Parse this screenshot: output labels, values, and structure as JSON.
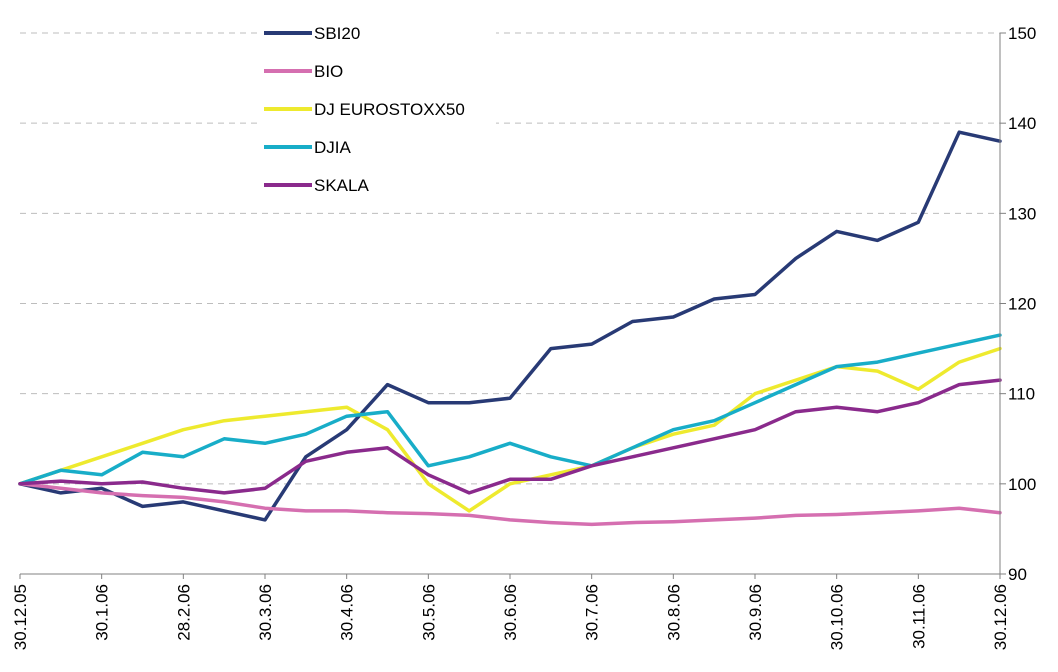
{
  "chart_data": {
    "type": "line",
    "categories": [
      "30.12.05",
      null,
      "30.1.06",
      null,
      "28.2.06",
      null,
      "30.3.06",
      null,
      "30.4.06",
      null,
      "30.5.06",
      null,
      "30.6.06",
      null,
      "30.7.06",
      null,
      "30.8.06",
      null,
      "30.9.06",
      null,
      "30.10.06",
      null,
      "30.11.06",
      null,
      "30.12.06"
    ],
    "series": [
      {
        "name": "SBI20",
        "color": "#283a75",
        "values": [
          100,
          99,
          99.5,
          97.5,
          98,
          97,
          96,
          103,
          106,
          111,
          109,
          109,
          109.5,
          115,
          115.5,
          118,
          118.5,
          120.5,
          121,
          125,
          128,
          127,
          129,
          139,
          138
        ]
      },
      {
        "name": "BIO",
        "color": "#d56fb0",
        "values": [
          100,
          99.5,
          99,
          98.7,
          98.5,
          98,
          97.3,
          97,
          97,
          96.8,
          96.7,
          96.5,
          96,
          95.7,
          95.5,
          95.7,
          95.8,
          96,
          96.2,
          96.5,
          96.6,
          96.8,
          97,
          97.3,
          96.8
        ]
      },
      {
        "name": "DJ EUROSTOXX50",
        "color": "#eeea2e",
        "values": [
          100,
          101.5,
          103,
          104.5,
          106,
          107,
          107.5,
          108,
          108.5,
          106,
          100,
          97,
          100,
          101,
          102,
          104,
          105.5,
          106.5,
          110,
          111.5,
          113,
          112.5,
          110.5,
          113.5,
          115
        ]
      },
      {
        "name": "DJIA",
        "color": "#18adc8",
        "values": [
          100,
          101.5,
          101,
          103.5,
          103,
          105,
          104.5,
          105.5,
          107.5,
          108,
          102,
          103,
          104.5,
          103,
          102,
          104,
          106,
          107,
          109,
          111,
          113,
          113.5,
          114.5,
          115.5,
          116.5
        ]
      },
      {
        "name": "SKALA",
        "color": "#8a2a8c",
        "values": [
          100,
          100.3,
          100,
          100.2,
          99.5,
          99,
          99.5,
          102.5,
          103.5,
          104,
          101,
          99,
          100.5,
          100.5,
          102,
          103,
          104,
          105,
          106,
          108,
          108.5,
          108,
          109,
          111,
          111.5
        ]
      }
    ],
    "ylim": [
      90,
      150
    ],
    "yticks": [
      90,
      100,
      110,
      120,
      130,
      140,
      150
    ],
    "y_axis_side": "right",
    "grid": true
  }
}
